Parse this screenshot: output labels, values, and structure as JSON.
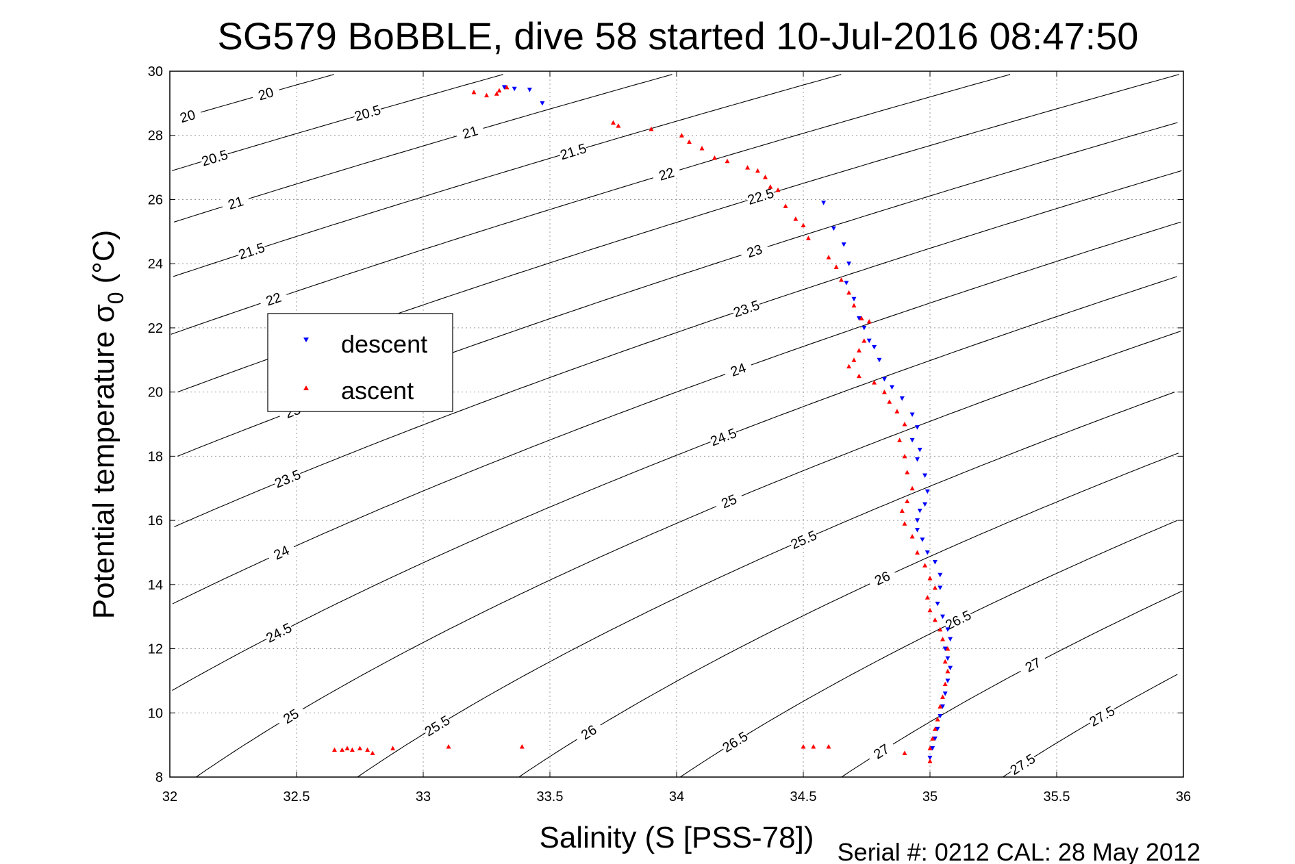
{
  "chart_data": {
    "type": "scatter",
    "title": "SG579 BoBBLE, dive 58 started 10-Jul-2016 08:47:50",
    "xlabel": "Salinity (S [PSS-78])",
    "ylabel_main": "Potential temperature σ",
    "ylabel_sub": "0",
    "ylabel_unit": "(°C)",
    "footer": "Serial #: 0212  CAL: 28 May 2012",
    "xlim": [
      32,
      36
    ],
    "ylim": [
      8,
      30
    ],
    "xticks": [
      "32",
      "32.5",
      "33",
      "33.5",
      "34",
      "34.5",
      "35",
      "35.5",
      "36"
    ],
    "yticks": [
      "8",
      "10",
      "12",
      "14",
      "16",
      "18",
      "20",
      "22",
      "24",
      "26",
      "28",
      "30"
    ],
    "grid": true,
    "legend": {
      "position": "left-middle",
      "entries": [
        "descent",
        "ascent"
      ]
    },
    "contour_levels": [
      "20",
      "20.5",
      "21",
      "21.5",
      "22",
      "22.5",
      "23",
      "23.5",
      "24",
      "24.5",
      "25",
      "25.5",
      "26",
      "26.5",
      "27",
      "27.5"
    ],
    "series": [
      {
        "name": "descent",
        "color": "#0000ff",
        "marker": "triangle-down",
        "points": [
          [
            33.32,
            29.5
          ],
          [
            33.36,
            29.45
          ],
          [
            33.42,
            29.42
          ],
          [
            33.47,
            29.0
          ],
          [
            34.58,
            25.9
          ],
          [
            34.62,
            25.1
          ],
          [
            34.66,
            24.6
          ],
          [
            34.68,
            24.0
          ],
          [
            34.67,
            23.4
          ],
          [
            34.7,
            22.9
          ],
          [
            34.72,
            22.3
          ],
          [
            34.74,
            22.0
          ],
          [
            34.76,
            21.6
          ],
          [
            34.78,
            21.4
          ],
          [
            34.8,
            21.0
          ],
          [
            34.82,
            20.4
          ],
          [
            34.85,
            20.15
          ],
          [
            34.89,
            19.8
          ],
          [
            34.93,
            19.3
          ],
          [
            34.95,
            18.9
          ],
          [
            34.93,
            18.5
          ],
          [
            34.96,
            18.2
          ],
          [
            34.95,
            17.9
          ],
          [
            34.98,
            17.4
          ],
          [
            34.99,
            16.9
          ],
          [
            34.98,
            16.5
          ],
          [
            34.96,
            16.3
          ],
          [
            34.95,
            16.0
          ],
          [
            34.95,
            15.7
          ],
          [
            34.97,
            15.4
          ],
          [
            34.99,
            15.0
          ],
          [
            35.02,
            14.7
          ],
          [
            35.04,
            14.3
          ],
          [
            35.04,
            13.9
          ],
          [
            35.03,
            13.4
          ],
          [
            35.05,
            13.0
          ],
          [
            35.07,
            12.6
          ],
          [
            35.08,
            12.3
          ],
          [
            35.06,
            12.0
          ],
          [
            35.07,
            11.7
          ],
          [
            35.08,
            11.4
          ],
          [
            35.07,
            11.0
          ],
          [
            35.06,
            10.6
          ],
          [
            35.05,
            10.2
          ],
          [
            35.04,
            9.9
          ],
          [
            35.03,
            9.5
          ],
          [
            35.02,
            9.2
          ],
          [
            35.01,
            8.9
          ],
          [
            35.0,
            8.6
          ]
        ]
      },
      {
        "name": "ascent",
        "color": "#ff0000",
        "marker": "triangle-up",
        "points": [
          [
            33.2,
            29.35
          ],
          [
            33.25,
            29.25
          ],
          [
            33.3,
            29.4
          ],
          [
            33.33,
            29.5
          ],
          [
            33.29,
            29.3
          ],
          [
            33.75,
            28.4
          ],
          [
            33.77,
            28.3
          ],
          [
            33.9,
            28.2
          ],
          [
            34.02,
            28.0
          ],
          [
            34.05,
            27.8
          ],
          [
            34.1,
            27.6
          ],
          [
            34.15,
            27.3
          ],
          [
            34.2,
            27.2
          ],
          [
            34.28,
            27.0
          ],
          [
            34.32,
            26.9
          ],
          [
            34.35,
            26.7
          ],
          [
            34.37,
            26.4
          ],
          [
            34.4,
            26.3
          ],
          [
            34.43,
            25.8
          ],
          [
            34.47,
            25.4
          ],
          [
            34.5,
            25.2
          ],
          [
            34.52,
            24.8
          ],
          [
            34.6,
            24.2
          ],
          [
            34.63,
            23.9
          ],
          [
            34.65,
            23.5
          ],
          [
            34.68,
            23.1
          ],
          [
            34.7,
            22.7
          ],
          [
            34.73,
            22.3
          ],
          [
            34.76,
            22.2
          ],
          [
            34.74,
            21.6
          ],
          [
            34.72,
            21.3
          ],
          [
            34.7,
            21.0
          ],
          [
            34.68,
            20.8
          ],
          [
            34.72,
            20.5
          ],
          [
            34.78,
            20.3
          ],
          [
            34.82,
            20.0
          ],
          [
            34.84,
            19.7
          ],
          [
            34.87,
            19.4
          ],
          [
            34.9,
            19.0
          ],
          [
            34.88,
            18.5
          ],
          [
            34.9,
            18.0
          ],
          [
            34.91,
            17.5
          ],
          [
            34.93,
            17.0
          ],
          [
            34.91,
            16.6
          ],
          [
            34.89,
            16.3
          ],
          [
            34.9,
            15.9
          ],
          [
            34.93,
            15.5
          ],
          [
            34.95,
            15.0
          ],
          [
            34.98,
            14.6
          ],
          [
            35.0,
            14.2
          ],
          [
            35.02,
            13.9
          ],
          [
            34.99,
            13.6
          ],
          [
            35.0,
            13.2
          ],
          [
            35.02,
            12.9
          ],
          [
            35.04,
            12.6
          ],
          [
            35.05,
            12.3
          ],
          [
            35.07,
            12.0
          ],
          [
            35.06,
            11.6
          ],
          [
            35.07,
            11.3
          ],
          [
            35.06,
            10.9
          ],
          [
            35.05,
            10.5
          ],
          [
            35.04,
            10.2
          ],
          [
            35.03,
            9.8
          ],
          [
            35.02,
            9.5
          ],
          [
            35.01,
            9.2
          ],
          [
            35.0,
            8.9
          ],
          [
            35.0,
            8.5
          ],
          [
            32.65,
            8.85
          ],
          [
            32.68,
            8.85
          ],
          [
            32.7,
            8.9
          ],
          [
            32.72,
            8.85
          ],
          [
            32.75,
            8.9
          ],
          [
            32.78,
            8.85
          ],
          [
            32.8,
            8.75
          ],
          [
            32.88,
            8.9
          ],
          [
            33.1,
            8.95
          ],
          [
            33.39,
            8.95
          ],
          [
            34.5,
            8.95
          ],
          [
            34.54,
            8.95
          ],
          [
            34.6,
            8.95
          ],
          [
            34.9,
            8.75
          ]
        ]
      }
    ]
  }
}
